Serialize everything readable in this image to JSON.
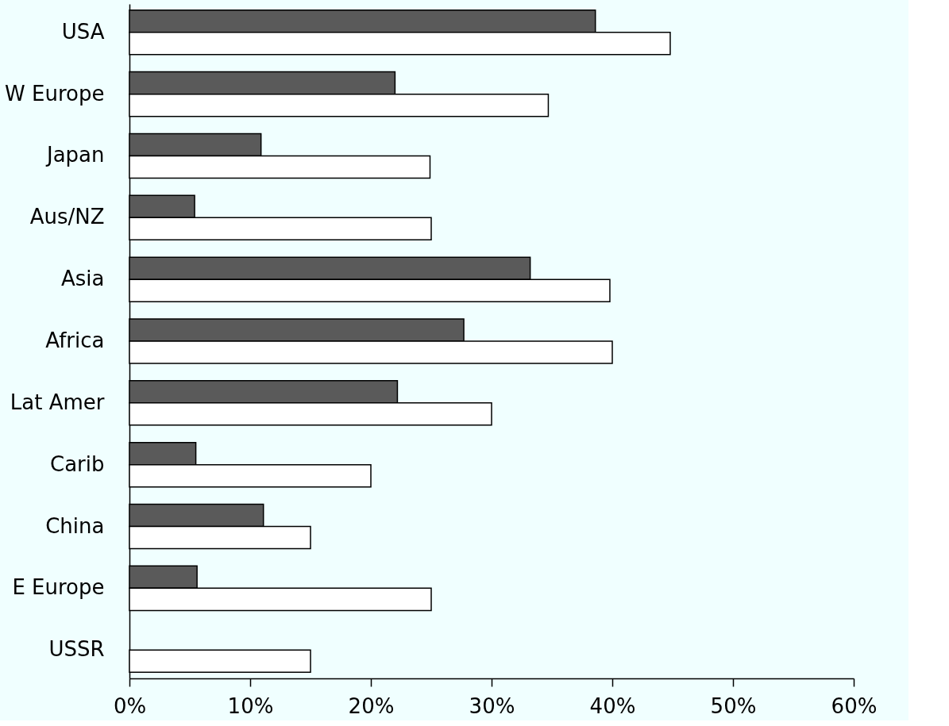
{
  "chart_data": {
    "type": "bar",
    "orientation": "horizontal",
    "categories": [
      "USA",
      "W Europe",
      "Japan",
      "Aus/NZ",
      "Asia",
      "Africa",
      "Lat Amer",
      "Carib",
      "China",
      "E Europe",
      "USSR"
    ],
    "series": [
      {
        "color": "#5a5a5a",
        "values": [
          38.6,
          22.0,
          10.9,
          5.4,
          33.2,
          27.7,
          22.2,
          5.5,
          11.1,
          5.6,
          null
        ]
      },
      {
        "color": "#ffffff",
        "values": [
          44.8,
          34.7,
          24.9,
          25,
          39.8,
          40,
          30,
          20,
          15,
          25,
          15
        ]
      }
    ],
    "xlim": [
      0,
      60
    ],
    "xticks": [
      {
        "value": 0,
        "label": "0%"
      },
      {
        "value": 10,
        "label": "10%"
      },
      {
        "value": 20,
        "label": "20%"
      },
      {
        "value": 30,
        "label": "30%"
      },
      {
        "value": 40,
        "label": "40%"
      },
      {
        "value": 50,
        "label": "50%"
      },
      {
        "value": 60,
        "label": "60%"
      }
    ],
    "grid": false,
    "legend": false
  }
}
